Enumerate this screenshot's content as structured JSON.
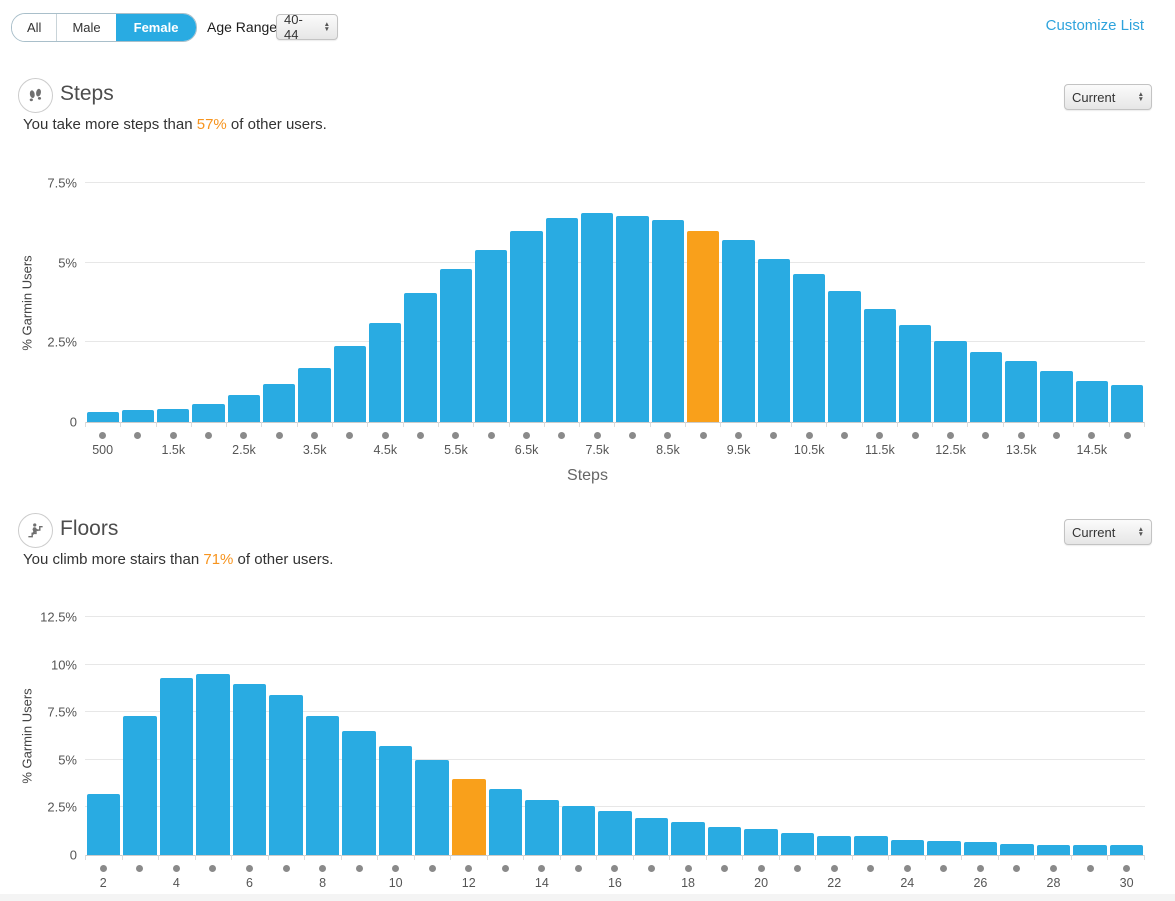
{
  "filters": {
    "segmented": {
      "options": [
        "All",
        "Male",
        "Female"
      ],
      "selected": "Female"
    },
    "age_range_label": "Age Range:",
    "age_range_value": "40-44",
    "customize_list_label": "Customize List"
  },
  "steps_section": {
    "title": "Steps",
    "subtitle_prefix": "You take more steps than ",
    "percent": "57%",
    "subtitle_suffix": " of other users.",
    "dropdown_value": "Current"
  },
  "floors_section": {
    "title": "Floors",
    "subtitle_prefix": "You climb more stairs than ",
    "percent": "71%",
    "subtitle_suffix": " of other users.",
    "dropdown_value": "Current"
  },
  "colors": {
    "accent_blue": "#29abe2",
    "highlight_orange": "#f9a01b",
    "percent_orange": "#f7941e"
  },
  "icons": {
    "steps": "footprints-icon",
    "floors": "stair-climber-icon",
    "dropdown": "stepper-arrows-icon"
  },
  "chart_data": [
    {
      "type": "bar",
      "title": "Steps distribution vs other Garmin users",
      "xlabel": "Steps",
      "ylabel": "% Garmin Users",
      "ymax": 7.5,
      "yticks": [
        0,
        2.5,
        5,
        7.5
      ],
      "ytick_labels": [
        "0",
        "2.5%",
        "5%",
        "7.5%"
      ],
      "bar_color": "#29abe2",
      "highlight_color": "#f9a01b",
      "highlight_x": 9000,
      "x": [
        500,
        1000,
        1500,
        2000,
        2500,
        3000,
        3500,
        4000,
        4500,
        5000,
        5500,
        6000,
        6500,
        7000,
        7500,
        8000,
        8500,
        9000,
        9500,
        10000,
        10500,
        11000,
        11500,
        12000,
        12500,
        13000,
        13500,
        14000,
        14500,
        15000
      ],
      "values": [
        0.3,
        0.37,
        0.42,
        0.55,
        0.85,
        1.2,
        1.7,
        2.4,
        3.1,
        4.05,
        4.8,
        5.4,
        6.0,
        6.4,
        6.55,
        6.45,
        6.35,
        6.0,
        5.7,
        5.1,
        4.65,
        4.1,
        3.55,
        3.05,
        2.55,
        2.2,
        1.9,
        1.6,
        1.3,
        1.15
      ],
      "x_tick_labels": [
        "500",
        "",
        "1.5k",
        "",
        "2.5k",
        "",
        "3.5k",
        "",
        "4.5k",
        "",
        "5.5k",
        "",
        "6.5k",
        "",
        "7.5k",
        "",
        "8.5k",
        "",
        "9.5k",
        "",
        "10.5k",
        "",
        "11.5k",
        "",
        "12.5k",
        "",
        "13.5k",
        "",
        "14.5k",
        ""
      ]
    },
    {
      "type": "bar",
      "title": "Floors climbed distribution vs other Garmin users",
      "xlabel": "",
      "ylabel": "% Garmin Users",
      "ymax": 12.5,
      "yticks": [
        0,
        2.5,
        5,
        7.5,
        10,
        12.5
      ],
      "ytick_labels": [
        "0",
        "2.5%",
        "5%",
        "7.5%",
        "10%",
        "12.5%"
      ],
      "bar_color": "#29abe2",
      "highlight_color": "#f9a01b",
      "highlight_x": 12,
      "x": [
        2,
        3,
        4,
        5,
        6,
        7,
        8,
        9,
        10,
        11,
        12,
        13,
        14,
        15,
        16,
        17,
        18,
        19,
        20,
        21,
        22,
        23,
        24,
        25,
        26,
        27,
        28,
        29,
        30
      ],
      "values": [
        3.2,
        7.3,
        9.3,
        9.5,
        9.0,
        8.4,
        7.3,
        6.5,
        5.7,
        5.0,
        4.0,
        3.45,
        2.9,
        2.6,
        2.3,
        1.95,
        1.75,
        1.45,
        1.35,
        1.15,
        1.0,
        1.0,
        0.8,
        0.75,
        0.7,
        0.6,
        0.55,
        0.5,
        0.5
      ],
      "x_tick_labels": [
        "2",
        "",
        "4",
        "",
        "6",
        "",
        "8",
        "",
        "10",
        "",
        "12",
        "",
        "14",
        "",
        "16",
        "",
        "18",
        "",
        "20",
        "",
        "22",
        "",
        "24",
        "",
        "26",
        "",
        "28",
        "",
        "30"
      ]
    }
  ]
}
